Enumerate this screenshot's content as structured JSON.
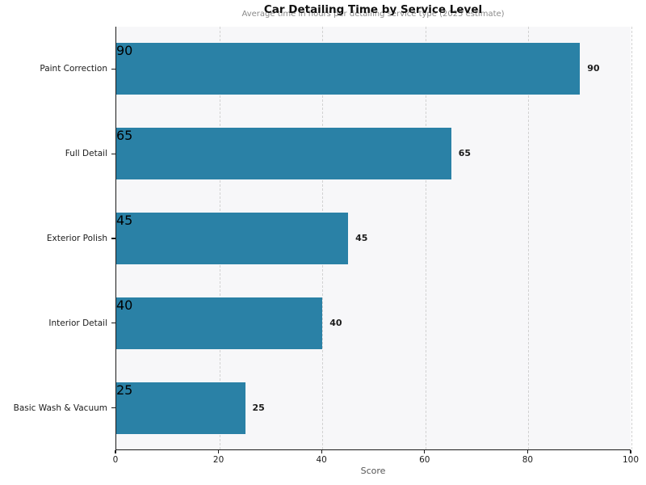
{
  "chart_data": {
    "type": "bar",
    "orientation": "horizontal",
    "title": "Car Detailing Time by Service Level",
    "subtitle": "Average time in hours per detailing service type (2025 estimate)",
    "categories": [
      "Paint Correction",
      "Full Detail",
      "Exterior Polish",
      "Interior Detail",
      "Basic Wash & Vacuum"
    ],
    "values": [
      90,
      65,
      45,
      40,
      25
    ],
    "xlabel": "Score",
    "xlim": [
      0,
      100
    ],
    "x_ticks": [
      0,
      20,
      40,
      60,
      80,
      100
    ],
    "grid": "vertical-dashed",
    "legend": "none",
    "colors": {
      "bar": "#2a81a6",
      "plot_background": "#f7f7f9",
      "page_background": "#ffffff",
      "gridline": "#d2d2d2",
      "axis": "#1a1a1a",
      "subtitle_text": "#8a8a8a"
    }
  }
}
